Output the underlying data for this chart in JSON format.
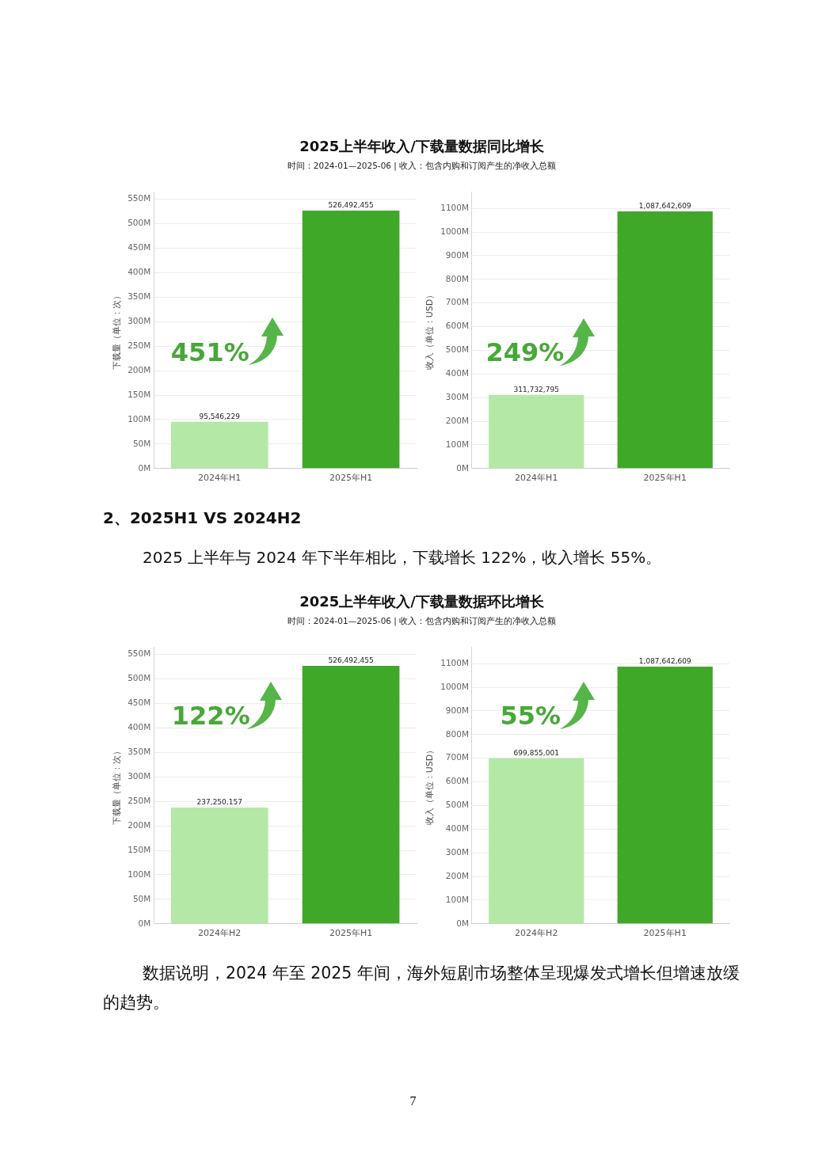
{
  "chart_data": [
    {
      "type": "bar",
      "title": "2025上半年收入/下载量数据同比增长",
      "subtitle": "时间：2024-01—2025-06 | 收入：包含内购和订阅产生的净收入总额",
      "categories": [
        "2024年H1",
        "2025年H1"
      ],
      "values": [
        95546229,
        526492455
      ],
      "colors": [
        "#b4e8a6",
        "#40a828"
      ],
      "ylabel": "下载量（单位：次）",
      "ylim": [
        0,
        565000000
      ],
      "yticks": [
        {
          "value": 0,
          "label": "0M"
        },
        {
          "value": 50000000,
          "label": "50M"
        },
        {
          "value": 100000000,
          "label": "100M"
        },
        {
          "value": 150000000,
          "label": "150M"
        },
        {
          "value": 200000000,
          "label": "200M"
        },
        {
          "value": 250000000,
          "label": "250M"
        },
        {
          "value": 300000000,
          "label": "300M"
        },
        {
          "value": 350000000,
          "label": "350M"
        },
        {
          "value": 400000000,
          "label": "400M"
        },
        {
          "value": 450000000,
          "label": "450M"
        },
        {
          "value": 500000000,
          "label": "500M"
        },
        {
          "value": 550000000,
          "label": "550M"
        }
      ],
      "grid": "y",
      "value_labels": [
        "95,546,229",
        "526,492,455"
      ],
      "annotations": [
        "451%"
      ]
    },
    {
      "type": "bar",
      "categories": [
        "2024年H1",
        "2025年H1"
      ],
      "values": [
        311732795,
        1087642609
      ],
      "colors": [
        "#b4e8a6",
        "#40a828"
      ],
      "ylabel": "收入（单位：USD）",
      "ylim": [
        0,
        1170000000
      ],
      "yticks": [
        {
          "value": 0,
          "label": "0M"
        },
        {
          "value": 100000000,
          "label": "100M"
        },
        {
          "value": 200000000,
          "label": "200M"
        },
        {
          "value": 300000000,
          "label": "300M"
        },
        {
          "value": 400000000,
          "label": "400M"
        },
        {
          "value": 500000000,
          "label": "500M"
        },
        {
          "value": 600000000,
          "label": "600M"
        },
        {
          "value": 700000000,
          "label": "700M"
        },
        {
          "value": 800000000,
          "label": "800M"
        },
        {
          "value": 900000000,
          "label": "900M"
        },
        {
          "value": 1000000000,
          "label": "1000M"
        },
        {
          "value": 1100000000,
          "label": "1100M"
        }
      ],
      "grid": "y",
      "value_labels": [
        "311,732,795",
        "1,087,642,609"
      ],
      "annotations": [
        "249%",
        "2、2025H1 VS 2024H2",
        "2025 上半年与 2024 年下半年相比，下载增长 122%，收入增长 55%。"
      ]
    },
    {
      "type": "bar",
      "title": "2025上半年收入/下载量数据环比增长",
      "subtitle": "时间：2024-01—2025-06 | 收入：包含内购和订阅产生的净收入总额",
      "categories": [
        "2024年H2",
        "2025年H1"
      ],
      "values": [
        237250157,
        526492455
      ],
      "colors": [
        "#b4e8a6",
        "#40a828"
      ],
      "ylabel": "下载量（单位：次）",
      "ylim": [
        0,
        565000000
      ],
      "yticks": [
        {
          "value": 0,
          "label": "0M"
        },
        {
          "value": 50000000,
          "label": "50M"
        },
        {
          "value": 100000000,
          "label": "100M"
        },
        {
          "value": 150000000,
          "label": "150M"
        },
        {
          "value": 200000000,
          "label": "200M"
        },
        {
          "value": 250000000,
          "label": "250M"
        },
        {
          "value": 300000000,
          "label": "300M"
        },
        {
          "value": 350000000,
          "label": "350M"
        },
        {
          "value": 400000000,
          "label": "400M"
        },
        {
          "value": 450000000,
          "label": "450M"
        },
        {
          "value": 500000000,
          "label": "500M"
        },
        {
          "value": 550000000,
          "label": "550M"
        }
      ],
      "grid": "y",
      "value_labels": [
        "237,250,157",
        "526,492,455"
      ],
      "annotations": [
        "122%"
      ]
    },
    {
      "type": "bar",
      "categories": [
        "2024年H2",
        "2025年H1"
      ],
      "values": [
        699855001,
        1087642609
      ],
      "colors": [
        "#b4e8a6",
        "#40a828"
      ],
      "ylabel": "收入（单位：USD）",
      "ylim": [
        0,
        1170000000
      ],
      "yticks": [
        {
          "value": 0,
          "label": "0M"
        },
        {
          "value": 100000000,
          "label": "100M"
        },
        {
          "value": 200000000,
          "label": "200M"
        },
        {
          "value": 300000000,
          "label": "300M"
        },
        {
          "value": 400000000,
          "label": "400M"
        },
        {
          "value": 500000000,
          "label": "500M"
        },
        {
          "value": 600000000,
          "label": "600M"
        },
        {
          "value": 700000000,
          "label": "700M"
        },
        {
          "value": 800000000,
          "label": "800M"
        },
        {
          "value": 900000000,
          "label": "900M"
        },
        {
          "value": 1000000000,
          "label": "1000M"
        },
        {
          "value": 1100000000,
          "label": "1100M"
        }
      ],
      "grid": "y",
      "value_labels": [
        "699,855,001",
        "1,087,642,609"
      ],
      "annotations": [
        "55%",
        "数据说明，2024 年至 2025 年间，海外短剧市场整体呈现爆发式增长但增速放缓的趋势。",
        "7"
      ]
    }
  ]
}
